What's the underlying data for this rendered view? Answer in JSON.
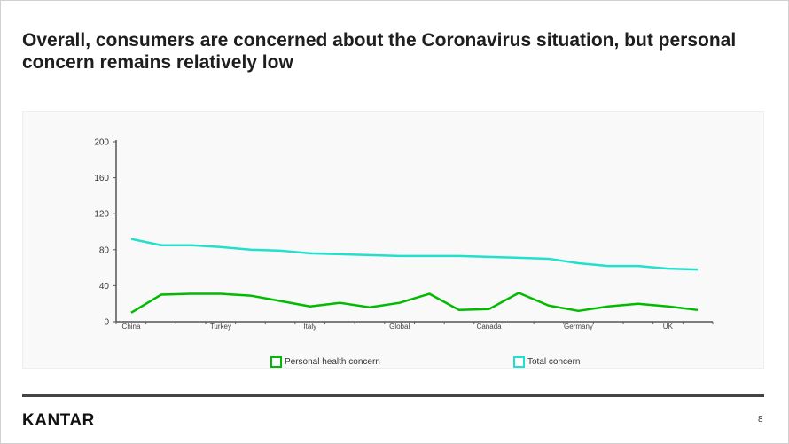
{
  "slide": {
    "title": "Overall, consumers are concerned about the Coronavirus situation, but personal concern remains relatively low",
    "logo": "KANTAR",
    "page_number": "8"
  },
  "chart_data": {
    "type": "line",
    "x": [
      "China",
      "",
      "",
      "Turkey",
      "",
      "",
      "Italy",
      "",
      "",
      "Global",
      "",
      "",
      "Canada",
      "",
      "",
      "Germany",
      "",
      "",
      "UK",
      ""
    ],
    "x_tick_labels": [
      "China",
      "Turkey",
      "Italy",
      "Global",
      "Canada",
      "Germany",
      "UK"
    ],
    "ylim": [
      0,
      200
    ],
    "y_ticks": [
      0,
      40,
      80,
      120,
      160,
      200
    ],
    "grid": false,
    "legend_position": "bottom",
    "series": [
      {
        "name": "Personal health concern",
        "color": "#00bb00",
        "values": [
          10,
          30,
          31,
          31,
          29,
          23,
          17,
          21,
          16,
          21,
          31,
          13,
          14,
          32,
          18,
          12,
          17,
          20,
          17,
          13
        ]
      },
      {
        "name": "Total concern",
        "color": "#22e0cc",
        "values": [
          92,
          85,
          85,
          83,
          80,
          79,
          76,
          75,
          74,
          73,
          73,
          73,
          72,
          71,
          70,
          65,
          62,
          62,
          59,
          58
        ]
      }
    ]
  }
}
